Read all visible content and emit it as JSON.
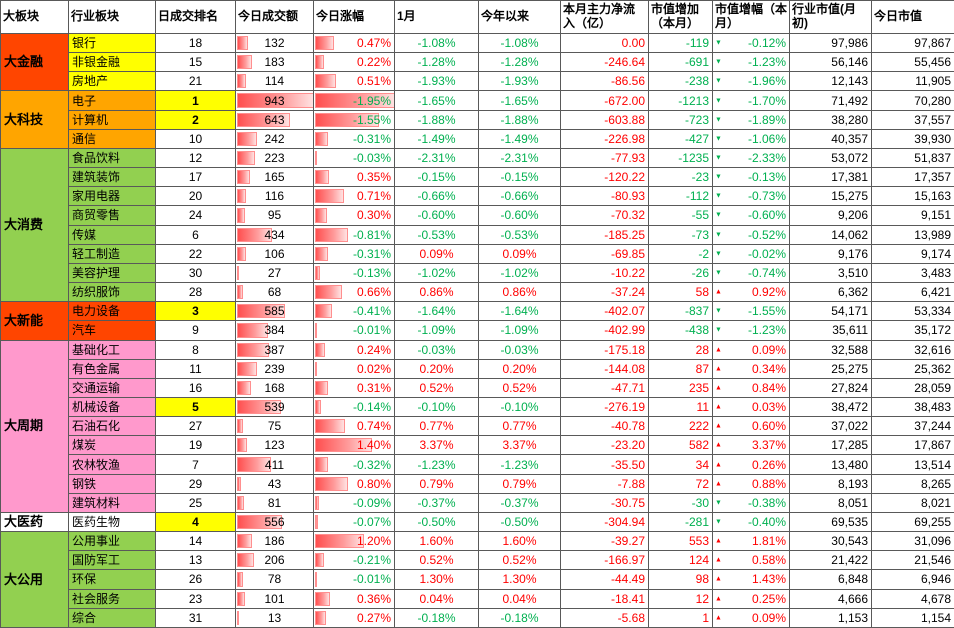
{
  "colors": {
    "positive": "#FF0000",
    "negative": "#00B050",
    "inflow": "#FF0000",
    "rank_highlight": "#FFFF00",
    "grid": "#595959"
  },
  "header": {
    "columns": [
      {
        "key": "major-sector",
        "label": "大板块"
      },
      {
        "key": "industry-sector",
        "label": "行业板块"
      },
      {
        "key": "daily-rank",
        "label": "日成交排名"
      },
      {
        "key": "today-amount",
        "label": "今日成交额"
      },
      {
        "key": "today-change",
        "label": "今日涨幅"
      },
      {
        "key": "january",
        "label": "1月"
      },
      {
        "key": "ytd",
        "label": "今年以来"
      },
      {
        "key": "month-net-inflow",
        "label": "本月主力净流入（亿）"
      },
      {
        "key": "cap-increase-month",
        "label": "市值增加（本月）"
      },
      {
        "key": "cap-increase-pct-month",
        "label": "市值增幅（本月）"
      },
      {
        "key": "industry-cap-month-start",
        "label": "行业市值(月初)"
      },
      {
        "key": "today-cap",
        "label": "今日市值"
      }
    ]
  },
  "table": {
    "amount_max": 943,
    "pct_max": 1.95,
    "groups": [
      {
        "name": "大金融",
        "key": "finance",
        "bg": "#FF4500",
        "row_bg": "#FFFF00",
        "rows": [
          {
            "industry": "银行",
            "rank": "18",
            "top": false,
            "amount": 132,
            "pct": "0.47%",
            "pct_abs": 0.47,
            "jan": "-1.08%",
            "ytd": "-1.08%",
            "inflow": "0.00",
            "cap_chg": "-119",
            "cap_pct": "-0.12%",
            "cap0": "97,986",
            "cap1": "97,867"
          },
          {
            "industry": "非银金融",
            "rank": "15",
            "top": false,
            "amount": 183,
            "pct": "0.22%",
            "pct_abs": 0.22,
            "jan": "-1.28%",
            "ytd": "-1.28%",
            "inflow": "-246.64",
            "cap_chg": "-691",
            "cap_pct": "-1.23%",
            "cap0": "56,146",
            "cap1": "55,456"
          },
          {
            "industry": "房地产",
            "rank": "21",
            "top": false,
            "amount": 114,
            "pct": "0.51%",
            "pct_abs": 0.51,
            "jan": "-1.93%",
            "ytd": "-1.93%",
            "inflow": "-86.56",
            "cap_chg": "-238",
            "cap_pct": "-1.96%",
            "cap0": "12,143",
            "cap1": "11,905"
          }
        ]
      },
      {
        "name": "大科技",
        "key": "technology",
        "bg": "#FFA500",
        "row_bg": "#FFA500",
        "rows": [
          {
            "industry": "电子",
            "rank": "1",
            "top": true,
            "amount": 943,
            "pct": "-1.95%",
            "pct_abs": 1.95,
            "jan": "-1.65%",
            "ytd": "-1.65%",
            "inflow": "-672.00",
            "cap_chg": "-1213",
            "cap_pct": "-1.70%",
            "cap0": "71,492",
            "cap1": "70,280"
          },
          {
            "industry": "计算机",
            "rank": "2",
            "top": true,
            "amount": 643,
            "pct": "-1.55%",
            "pct_abs": 1.55,
            "jan": "-1.88%",
            "ytd": "-1.88%",
            "inflow": "-603.88",
            "cap_chg": "-723",
            "cap_pct": "-1.89%",
            "cap0": "38,280",
            "cap1": "37,557"
          },
          {
            "industry": "通信",
            "rank": "10",
            "top": false,
            "amount": 242,
            "pct": "-0.31%",
            "pct_abs": 0.31,
            "jan": "-1.49%",
            "ytd": "-1.49%",
            "inflow": "-226.98",
            "cap_chg": "-427",
            "cap_pct": "-1.06%",
            "cap0": "40,357",
            "cap1": "39,930"
          }
        ]
      },
      {
        "name": "大消费",
        "key": "consumer",
        "bg": "#92D050",
        "row_bg": "#92D050",
        "rows": [
          {
            "industry": "食品饮料",
            "rank": "12",
            "top": false,
            "amount": 223,
            "pct": "-0.03%",
            "pct_abs": 0.03,
            "jan": "-2.31%",
            "ytd": "-2.31%",
            "inflow": "-77.93",
            "cap_chg": "-1235",
            "cap_pct": "-2.33%",
            "cap0": "53,072",
            "cap1": "51,837"
          },
          {
            "industry": "建筑装饰",
            "rank": "17",
            "top": false,
            "amount": 165,
            "pct": "0.35%",
            "pct_abs": 0.35,
            "jan": "-0.15%",
            "ytd": "-0.15%",
            "inflow": "-120.22",
            "cap_chg": "-23",
            "cap_pct": "-0.13%",
            "cap0": "17,381",
            "cap1": "17,357"
          },
          {
            "industry": "家用电器",
            "rank": "20",
            "top": false,
            "amount": 116,
            "pct": "0.71%",
            "pct_abs": 0.71,
            "jan": "-0.66%",
            "ytd": "-0.66%",
            "inflow": "-80.93",
            "cap_chg": "-112",
            "cap_pct": "-0.73%",
            "cap0": "15,275",
            "cap1": "15,163"
          },
          {
            "industry": "商贸零售",
            "rank": "24",
            "top": false,
            "amount": 95,
            "pct": "0.30%",
            "pct_abs": 0.3,
            "jan": "-0.60%",
            "ytd": "-0.60%",
            "inflow": "-70.32",
            "cap_chg": "-55",
            "cap_pct": "-0.60%",
            "cap0": "9,206",
            "cap1": "9,151"
          },
          {
            "industry": "传媒",
            "rank": "6",
            "top": false,
            "amount": 434,
            "pct": "-0.81%",
            "pct_abs": 0.81,
            "jan": "-0.53%",
            "ytd": "-0.53%",
            "inflow": "-185.25",
            "cap_chg": "-73",
            "cap_pct": "-0.52%",
            "cap0": "14,062",
            "cap1": "13,989"
          },
          {
            "industry": "轻工制造",
            "rank": "22",
            "top": false,
            "amount": 106,
            "pct": "-0.31%",
            "pct_abs": 0.31,
            "jan": "0.09%",
            "ytd": "0.09%",
            "inflow": "-69.85",
            "cap_chg": "-2",
            "cap_pct": "-0.02%",
            "cap0": "9,176",
            "cap1": "9,174"
          },
          {
            "industry": "美容护理",
            "rank": "30",
            "top": false,
            "amount": 27,
            "pct": "-0.13%",
            "pct_abs": 0.13,
            "jan": "-1.02%",
            "ytd": "-1.02%",
            "inflow": "-10.22",
            "cap_chg": "-26",
            "cap_pct": "-0.74%",
            "cap0": "3,510",
            "cap1": "3,483"
          },
          {
            "industry": "纺织服饰",
            "rank": "28",
            "top": false,
            "amount": 68,
            "pct": "0.66%",
            "pct_abs": 0.66,
            "jan": "0.86%",
            "ytd": "0.86%",
            "inflow": "-37.24",
            "cap_chg": "58",
            "cap_pct": "0.92%",
            "cap0": "6,362",
            "cap1": "6,421"
          }
        ]
      },
      {
        "name": "大新能",
        "key": "new-energy",
        "bg": "#FF4500",
        "row_bg": "#FF4500",
        "rows": [
          {
            "industry": "电力设备",
            "rank": "3",
            "top": true,
            "amount": 585,
            "pct": "-0.41%",
            "pct_abs": 0.41,
            "jan": "-1.64%",
            "ytd": "-1.64%",
            "inflow": "-402.07",
            "cap_chg": "-837",
            "cap_pct": "-1.55%",
            "cap0": "54,171",
            "cap1": "53,334"
          },
          {
            "industry": "汽车",
            "rank": "9",
            "top": false,
            "amount": 384,
            "pct": "-0.01%",
            "pct_abs": 0.01,
            "jan": "-1.09%",
            "ytd": "-1.09%",
            "inflow": "-402.99",
            "cap_chg": "-438",
            "cap_pct": "-1.23%",
            "cap0": "35,611",
            "cap1": "35,172"
          }
        ]
      },
      {
        "name": "大周期",
        "key": "cyclical",
        "bg": "#FF99CC",
        "row_bg": "#FF99CC",
        "rows": [
          {
            "industry": "基础化工",
            "rank": "8",
            "top": false,
            "amount": 387,
            "pct": "0.24%",
            "pct_abs": 0.24,
            "jan": "-0.03%",
            "ytd": "-0.03%",
            "inflow": "-175.18",
            "cap_chg": "28",
            "cap_pct": "0.09%",
            "cap0": "32,588",
            "cap1": "32,616"
          },
          {
            "industry": "有色金属",
            "rank": "11",
            "top": false,
            "amount": 239,
            "pct": "0.02%",
            "pct_abs": 0.02,
            "jan": "0.20%",
            "ytd": "0.20%",
            "inflow": "-144.08",
            "cap_chg": "87",
            "cap_pct": "0.34%",
            "cap0": "25,275",
            "cap1": "25,362"
          },
          {
            "industry": "交通运输",
            "rank": "16",
            "top": false,
            "amount": 168,
            "pct": "0.31%",
            "pct_abs": 0.31,
            "jan": "0.52%",
            "ytd": "0.52%",
            "inflow": "-47.71",
            "cap_chg": "235",
            "cap_pct": "0.84%",
            "cap0": "27,824",
            "cap1": "28,059"
          },
          {
            "industry": "机械设备",
            "rank": "5",
            "top": true,
            "amount": 539,
            "pct": "-0.14%",
            "pct_abs": 0.14,
            "jan": "-0.10%",
            "ytd": "-0.10%",
            "inflow": "-276.19",
            "cap_chg": "11",
            "cap_pct": "0.03%",
            "cap0": "38,472",
            "cap1": "38,483"
          },
          {
            "industry": "石油石化",
            "rank": "27",
            "top": false,
            "amount": 75,
            "pct": "0.74%",
            "pct_abs": 0.74,
            "jan": "0.77%",
            "ytd": "0.77%",
            "inflow": "-40.78",
            "cap_chg": "222",
            "cap_pct": "0.60%",
            "cap0": "37,022",
            "cap1": "37,244"
          },
          {
            "industry": "煤炭",
            "rank": "19",
            "top": false,
            "amount": 123,
            "pct": "1.40%",
            "pct_abs": 1.4,
            "jan": "3.37%",
            "ytd": "3.37%",
            "inflow": "-23.20",
            "cap_chg": "582",
            "cap_pct": "3.37%",
            "cap0": "17,285",
            "cap1": "17,867"
          },
          {
            "industry": "农林牧渔",
            "rank": "7",
            "top": false,
            "amount": 411,
            "pct": "-0.32%",
            "pct_abs": 0.32,
            "jan": "-1.23%",
            "ytd": "-1.23%",
            "inflow": "-35.50",
            "cap_chg": "34",
            "cap_pct": "0.26%",
            "cap0": "13,480",
            "cap1": "13,514"
          },
          {
            "industry": "钢铁",
            "rank": "29",
            "top": false,
            "amount": 43,
            "pct": "0.80%",
            "pct_abs": 0.8,
            "jan": "0.79%",
            "ytd": "0.79%",
            "inflow": "-7.88",
            "cap_chg": "72",
            "cap_pct": "0.88%",
            "cap0": "8,193",
            "cap1": "8,265"
          },
          {
            "industry": "建筑材料",
            "rank": "25",
            "top": false,
            "amount": 81,
            "pct": "-0.09%",
            "pct_abs": 0.09,
            "jan": "-0.37%",
            "ytd": "-0.37%",
            "inflow": "-30.75",
            "cap_chg": "-30",
            "cap_pct": "-0.38%",
            "cap0": "8,051",
            "cap1": "8,021"
          }
        ]
      },
      {
        "name": "大医药",
        "key": "pharma",
        "bg": "#FFFFFF",
        "row_bg": "#FFFFFF",
        "rows": [
          {
            "industry": "医药生物",
            "rank": "4",
            "top": true,
            "amount": 556,
            "pct": "-0.07%",
            "pct_abs": 0.07,
            "jan": "-0.50%",
            "ytd": "-0.50%",
            "inflow": "-304.94",
            "cap_chg": "-281",
            "cap_pct": "-0.40%",
            "cap0": "69,535",
            "cap1": "69,255"
          }
        ]
      },
      {
        "name": "大公用",
        "key": "utilities",
        "bg": "#92D050",
        "row_bg": "#92D050",
        "rows": [
          {
            "industry": "公用事业",
            "rank": "14",
            "top": false,
            "amount": 186,
            "pct": "1.20%",
            "pct_abs": 1.2,
            "jan": "1.60%",
            "ytd": "1.60%",
            "inflow": "-39.27",
            "cap_chg": "553",
            "cap_pct": "1.81%",
            "cap0": "30,543",
            "cap1": "31,096"
          },
          {
            "industry": "国防军工",
            "rank": "13",
            "top": false,
            "amount": 206,
            "pct": "-0.21%",
            "pct_abs": 0.21,
            "jan": "0.52%",
            "ytd": "0.52%",
            "inflow": "-166.97",
            "cap_chg": "124",
            "cap_pct": "0.58%",
            "cap0": "21,422",
            "cap1": "21,546"
          },
          {
            "industry": "环保",
            "rank": "26",
            "top": false,
            "amount": 78,
            "pct": "-0.01%",
            "pct_abs": 0.01,
            "jan": "1.30%",
            "ytd": "1.30%",
            "inflow": "-44.49",
            "cap_chg": "98",
            "cap_pct": "1.43%",
            "cap0": "6,848",
            "cap1": "6,946"
          },
          {
            "industry": "社会服务",
            "rank": "23",
            "top": false,
            "amount": 101,
            "pct": "0.36%",
            "pct_abs": 0.36,
            "jan": "0.04%",
            "ytd": "0.04%",
            "inflow": "-18.41",
            "cap_chg": "12",
            "cap_pct": "0.25%",
            "cap0": "4,666",
            "cap1": "4,678"
          },
          {
            "industry": "综合",
            "rank": "31",
            "top": false,
            "amount": 13,
            "pct": "0.27%",
            "pct_abs": 0.27,
            "jan": "-0.18%",
            "ytd": "-0.18%",
            "inflow": "-5.68",
            "cap_chg": "1",
            "cap_pct": "0.09%",
            "cap0": "1,153",
            "cap1": "1,154"
          }
        ]
      }
    ]
  }
}
